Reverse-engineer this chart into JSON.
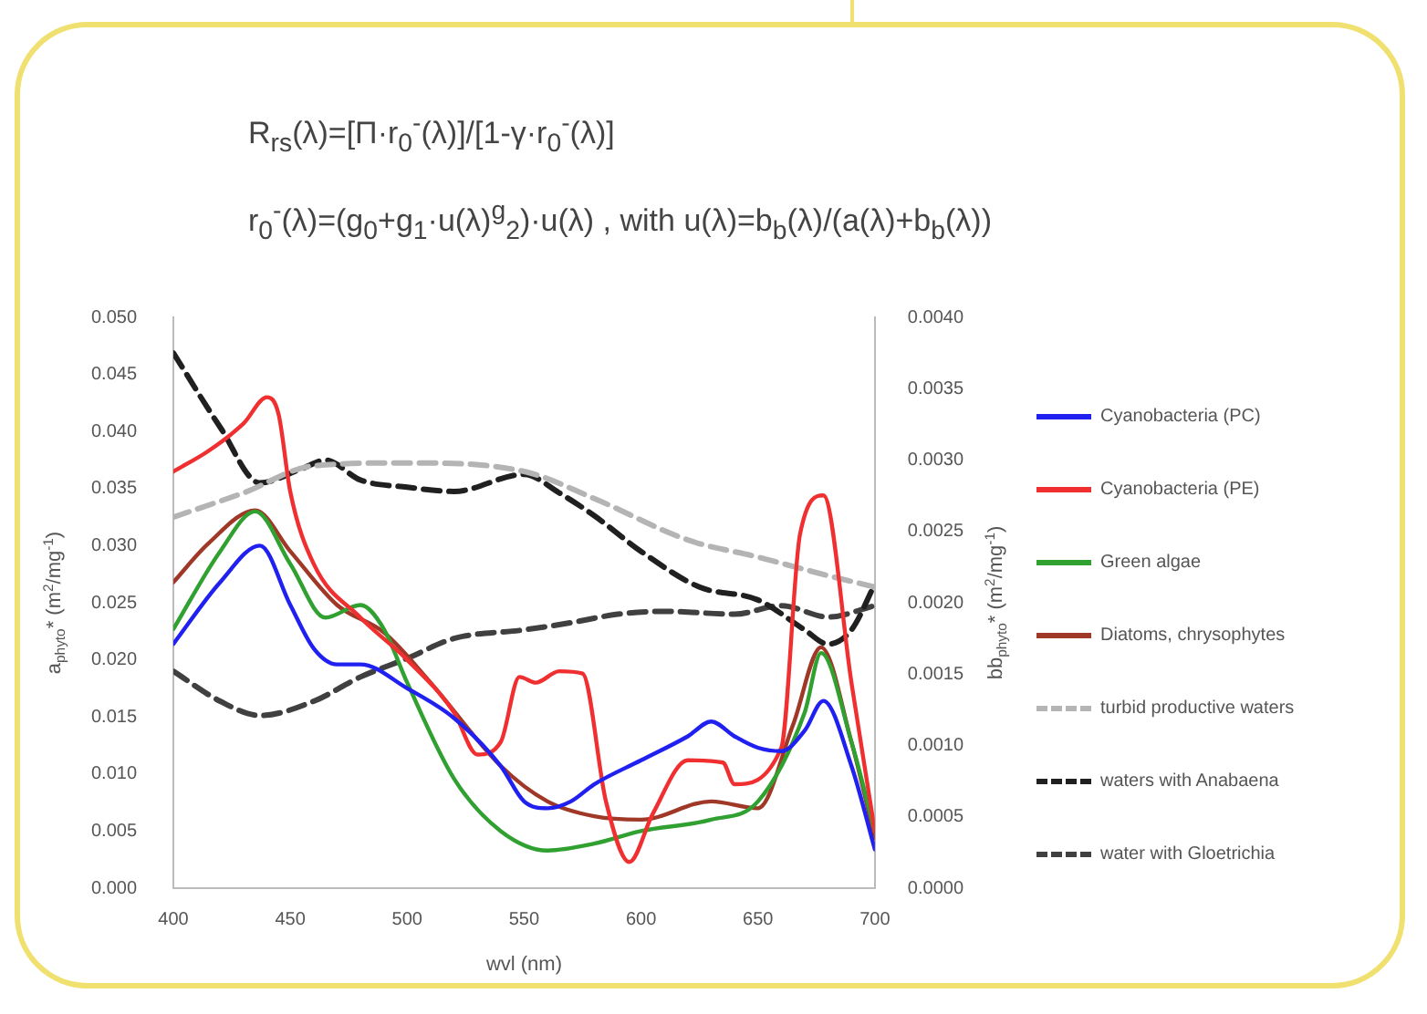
{
  "chart_data": {
    "type": "line",
    "title": "R$_{rs}$(λ)=[Π·r$_{0}$$^{-}$(λ)]/[1-γ·r$_{0}$$^{-}$(λ)]",
    "subtitle": "r$_{0}$$^{-}$(λ)=(g$_{0}$+g$_{1}$·u(λ)$^{g}$$^{}$$_{2}$)·u(λ) , with u(λ)=b$_{b}$(λ)/(a(λ)+b$_{b}$(λ))",
    "xlabel": "wvl (nm)",
    "ylabel": "a$_{phyto}$* (m$^{2}$/mg$^{-1}$)",
    "y2label": "bb$_{phyto}$* (m$^{2}$/mg$^{-1}$)",
    "xlim": [
      400,
      700
    ],
    "xticks": [
      400,
      450,
      500,
      550,
      600,
      650,
      700
    ],
    "ylim": [
      0,
      0.05
    ],
    "yticks": [
      {
        "value": 0,
        "label": "0.000"
      },
      {
        "value": 0.005,
        "label": "0.005"
      },
      {
        "value": 0.01,
        "label": "0.010"
      },
      {
        "value": 0.015,
        "label": "0.015"
      },
      {
        "value": 0.02,
        "label": "0.020"
      },
      {
        "value": 0.025,
        "label": "0.025"
      },
      {
        "value": 0.03,
        "label": "0.030"
      },
      {
        "value": 0.035,
        "label": "0.035"
      },
      {
        "value": 0.04,
        "label": "0.040"
      },
      {
        "value": 0.045,
        "label": "0.045"
      },
      {
        "value": 0.05,
        "label": "0.050"
      }
    ],
    "y2lim": [
      0,
      0.004
    ],
    "y2ticks": [
      {
        "value": 0,
        "label": "0.0000"
      },
      {
        "value": 0.0005,
        "label": "0.0005"
      },
      {
        "value": 0.001,
        "label": "0.0010"
      },
      {
        "value": 0.0015,
        "label": "0.0015"
      },
      {
        "value": 0.002,
        "label": "0.0020"
      },
      {
        "value": 0.0025,
        "label": "0.0025"
      },
      {
        "value": 0.003,
        "label": "0.0030"
      },
      {
        "value": 0.0035,
        "label": "0.0035"
      },
      {
        "value": 0.004,
        "label": "0.0040"
      }
    ],
    "grid": false,
    "legend": "right",
    "marker": "none",
    "series": [
      {
        "name": "Cyanobacteria (PC)",
        "color": "#2020f0",
        "line_style": "solid",
        "x": [
          400,
          420,
          437,
          450,
          460,
          470,
          480,
          500,
          520,
          540,
          550,
          560,
          570,
          580,
          600,
          620,
          630,
          640,
          650,
          660,
          670,
          678,
          690,
          700
        ],
        "values": [
          0.0214,
          0.0268,
          0.03,
          0.0248,
          0.021,
          0.0196,
          0.0196,
          0.0175,
          0.0149,
          0.0107,
          0.0076,
          0.007,
          0.0076,
          0.0091,
          0.0112,
          0.0133,
          0.0146,
          0.0133,
          0.0123,
          0.012,
          0.0138,
          0.0164,
          0.0107,
          0.0034
        ]
      },
      {
        "name": "Cyanobacteria (PE)",
        "color": "#f03030",
        "line_style": "solid",
        "x": [
          400,
          415,
          430,
          440,
          445,
          450,
          460,
          480,
          500,
          520,
          530,
          540,
          548,
          555,
          565,
          575,
          585,
          595,
          605,
          620,
          635,
          640,
          660,
          668,
          678,
          690,
          700
        ],
        "values": [
          0.0365,
          0.0383,
          0.0407,
          0.043,
          0.0415,
          0.0347,
          0.0284,
          0.0237,
          0.02,
          0.0154,
          0.0117,
          0.0128,
          0.0185,
          0.018,
          0.019,
          0.0188,
          0.0076,
          0.0023,
          0.0065,
          0.0112,
          0.011,
          0.0091,
          0.0123,
          0.031,
          0.0344,
          0.018,
          0.005
        ]
      },
      {
        "name": "Green algae",
        "color": "#30a030",
        "line_style": "solid",
        "x": [
          400,
          420,
          435,
          450,
          465,
          480,
          490,
          500,
          520,
          540,
          560,
          580,
          600,
          630,
          650,
          670,
          677,
          690,
          700
        ],
        "values": [
          0.0227,
          0.0295,
          0.033,
          0.0284,
          0.0237,
          0.0248,
          0.0227,
          0.018,
          0.0096,
          0.005,
          0.0033,
          0.0039,
          0.005,
          0.006,
          0.0076,
          0.0154,
          0.0206,
          0.0128,
          0.005
        ]
      },
      {
        "name": "Diatoms, chrysophytes",
        "color": "#a03828",
        "line_style": "solid",
        "x": [
          400,
          415,
          435,
          450,
          470,
          490,
          510,
          540,
          560,
          580,
          600,
          630,
          650,
          665,
          677,
          690,
          700
        ],
        "values": [
          0.0268,
          0.0302,
          0.0331,
          0.0295,
          0.0248,
          0.0224,
          0.018,
          0.0107,
          0.0076,
          0.0063,
          0.006,
          0.0076,
          0.007,
          0.0143,
          0.0211,
          0.0128,
          0.0044
        ]
      },
      {
        "name": "turbid productive waters",
        "color": "#b4b4b4",
        "line_style": "dashed",
        "axis": "y2",
        "x": [
          400,
          430,
          460,
          500,
          550,
          580,
          620,
          650,
          680,
          700
        ],
        "values": [
          0.0026,
          0.00277,
          0.00296,
          0.00298,
          0.00292,
          0.00273,
          0.00244,
          0.00232,
          0.00219,
          0.00211
        ]
      },
      {
        "name": "waters with Anabaena",
        "color": "#202020",
        "line_style": "dashed",
        "axis": "y2",
        "x": [
          400,
          420,
          437,
          455,
          465,
          480,
          500,
          520,
          550,
          565,
          580,
          600,
          625,
          650,
          670,
          680,
          690,
          700
        ],
        "values": [
          0.00375,
          0.00323,
          0.00284,
          0.00294,
          0.003,
          0.00286,
          0.00281,
          0.00278,
          0.0029,
          0.00277,
          0.00261,
          0.00236,
          0.00211,
          0.00202,
          0.00181,
          0.00171,
          0.00181,
          0.00213
        ]
      },
      {
        "name": "water with Gloetrichia",
        "color": "#404040",
        "line_style": "dashed",
        "axis": "y2",
        "x": [
          400,
          420,
          437,
          460,
          480,
          500,
          520,
          550,
          570,
          590,
          610,
          640,
          660,
          680,
          700
        ],
        "values": [
          0.00152,
          0.00131,
          0.00121,
          0.00131,
          0.00148,
          0.00161,
          0.00175,
          0.00181,
          0.00186,
          0.00192,
          0.00194,
          0.00192,
          0.00198,
          0.0019,
          0.00198
        ]
      }
    ]
  }
}
